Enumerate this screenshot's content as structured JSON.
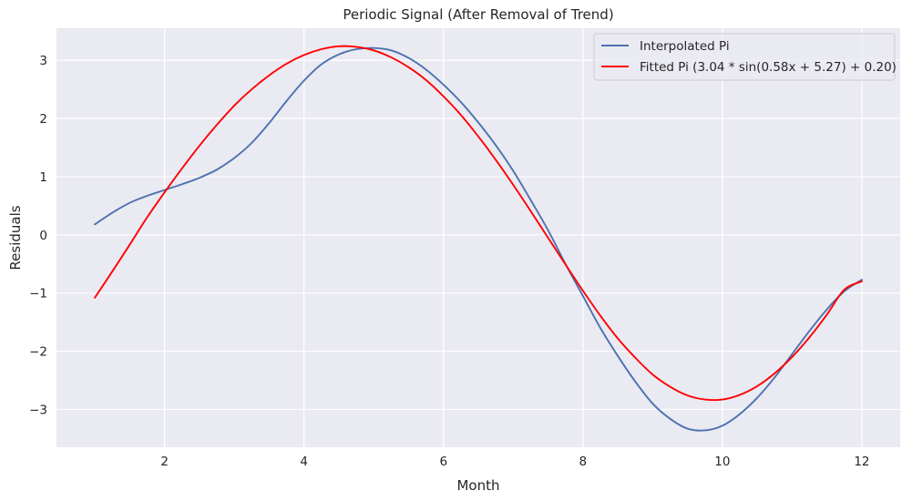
{
  "chart_data": {
    "type": "line",
    "title": "Periodic Signal (After Removal of Trend)",
    "xlabel": "Month",
    "ylabel": "Residuals",
    "xlim": [
      0.45,
      12.55
    ],
    "ylim": [
      -3.65,
      3.55
    ],
    "xticks": [
      2,
      4,
      6,
      8,
      10,
      12
    ],
    "xtick_labels": [
      "2",
      "4",
      "6",
      "8",
      "10",
      "12"
    ],
    "yticks": [
      -3,
      -2,
      -1,
      0,
      1,
      2,
      3
    ],
    "ytick_labels": [
      "−3",
      "−2",
      "−1",
      "0",
      "1",
      "2",
      "3"
    ],
    "grid": true,
    "legend_position": "upper right",
    "colors": {
      "background": "#eaeaf2",
      "grid": "#ffffff",
      "text": "#262626"
    },
    "series": [
      {
        "name": "Interpolated Pi",
        "color": "#4c72b0",
        "x": [
          1.0,
          1.25,
          1.5,
          1.75,
          2.0,
          2.25,
          2.5,
          2.75,
          3.0,
          3.25,
          3.5,
          3.75,
          4.0,
          4.25,
          4.5,
          4.75,
          5.0,
          5.25,
          5.5,
          5.75,
          6.0,
          6.25,
          6.5,
          6.75,
          7.0,
          7.25,
          7.5,
          7.75,
          8.0,
          8.25,
          8.5,
          8.75,
          9.0,
          9.25,
          9.5,
          9.75,
          10.0,
          10.25,
          10.5,
          10.75,
          11.0,
          11.25,
          11.5,
          11.75,
          12.0
        ],
        "y": [
          0.18,
          0.38,
          0.55,
          0.67,
          0.77,
          0.87,
          0.98,
          1.12,
          1.32,
          1.58,
          1.92,
          2.3,
          2.65,
          2.93,
          3.1,
          3.19,
          3.21,
          3.17,
          3.04,
          2.84,
          2.58,
          2.28,
          1.93,
          1.54,
          1.1,
          0.6,
          0.08,
          -0.5,
          -1.05,
          -1.6,
          -2.08,
          -2.52,
          -2.9,
          -3.16,
          -3.33,
          -3.36,
          -3.28,
          -3.08,
          -2.8,
          -2.45,
          -2.05,
          -1.65,
          -1.28,
          -0.97,
          -0.77
        ]
      },
      {
        "name": "Fitted Pi (3.04 * sin(0.58x + 5.27) + 0.20)",
        "color": "#ff0000",
        "x": [
          1.0,
          1.25,
          1.5,
          1.75,
          2.0,
          2.25,
          2.5,
          2.75,
          3.0,
          3.25,
          3.5,
          3.75,
          4.0,
          4.25,
          4.5,
          4.75,
          5.0,
          5.25,
          5.5,
          5.75,
          6.0,
          6.25,
          6.5,
          6.75,
          7.0,
          7.25,
          7.5,
          7.75,
          8.0,
          8.25,
          8.5,
          8.75,
          9.0,
          9.25,
          9.5,
          9.75,
          10.0,
          10.25,
          10.5,
          10.75,
          11.0,
          11.25,
          11.5,
          11.75,
          12.0
        ],
        "y": [
          -1.08,
          -0.63,
          -0.17,
          0.3,
          0.73,
          1.14,
          1.53,
          1.89,
          2.22,
          2.5,
          2.74,
          2.94,
          3.09,
          3.19,
          3.24,
          3.23,
          3.17,
          3.05,
          2.88,
          2.66,
          2.38,
          2.06,
          1.69,
          1.29,
          0.86,
          0.41,
          -0.05,
          -0.51,
          -0.96,
          -1.39,
          -1.78,
          -2.11,
          -2.4,
          -2.61,
          -2.76,
          -2.83,
          -2.83,
          -2.75,
          -2.6,
          -2.38,
          -2.1,
          -1.76,
          -1.37,
          -0.94,
          -0.8
        ]
      }
    ]
  }
}
